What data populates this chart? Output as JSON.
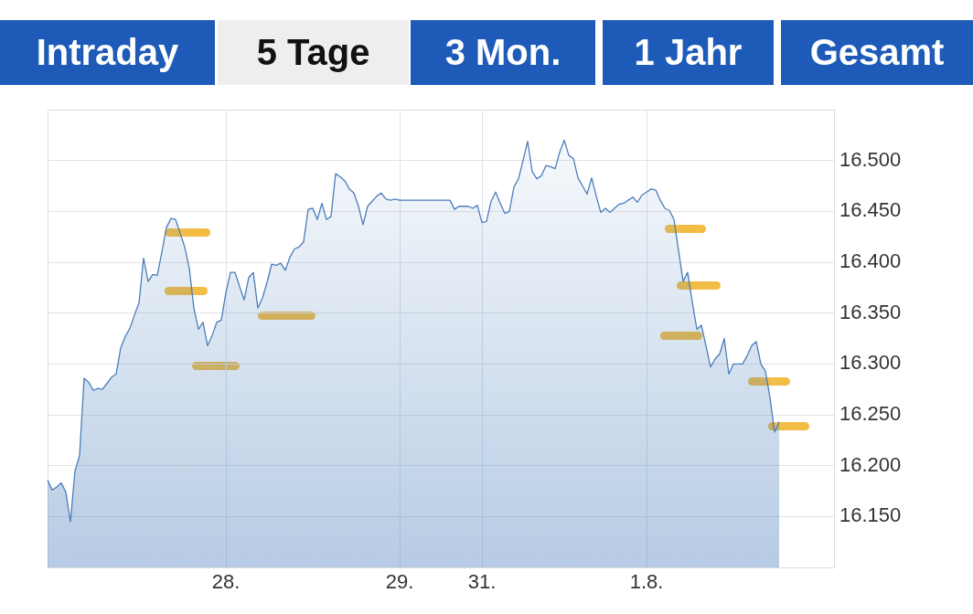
{
  "chart_data": {
    "type": "area",
    "annotations": [
      "Intraday",
      "5 Tage",
      "3 Mon.",
      "1 Jahr",
      "Gesamt"
    ],
    "categories": [
      null,
      null,
      null,
      null,
      null,
      null,
      null,
      null,
      null,
      null,
      null,
      null,
      null,
      null,
      null,
      null,
      null,
      null,
      null,
      null,
      null,
      null,
      null,
      null,
      null,
      null,
      null,
      null,
      null,
      null,
      null,
      null,
      null,
      null,
      null,
      null,
      null,
      null,
      null,
      "28.",
      null,
      null,
      null,
      null,
      null,
      null,
      null,
      null,
      null,
      null,
      null,
      null,
      null,
      null,
      null,
      null,
      null,
      null,
      null,
      null,
      null,
      null,
      null,
      null,
      null,
      null,
      null,
      null,
      null,
      null,
      null,
      null,
      null,
      null,
      null,
      null,
      null,
      "29.",
      null,
      null,
      null,
      null,
      null,
      null,
      null,
      null,
      null,
      null,
      null,
      null,
      null,
      null,
      null,
      null,
      null,
      "31.",
      null,
      null,
      null,
      null,
      null,
      null,
      null,
      null,
      null,
      null,
      null,
      null,
      null,
      null,
      null,
      null,
      null,
      null,
      null,
      null,
      null,
      null,
      null,
      null,
      null,
      null,
      null,
      null,
      null,
      null,
      null,
      null,
      null,
      null,
      null,
      "1.8.",
      null,
      null,
      null,
      null,
      null,
      null,
      null,
      null,
      null,
      null,
      null,
      null,
      null,
      null,
      null,
      null,
      null,
      null,
      null,
      null,
      null,
      null,
      null,
      null,
      null,
      null,
      null,
      null,
      null,
      null,
      null,
      null,
      null,
      null,
      null,
      null,
      null,
      null,
      null,
      null,
      null
    ],
    "series": [
      {
        "color": "#4a7ebb",
        "values": [
          16.186,
          16.176,
          16.179,
          16.183,
          16.174,
          16.145,
          16.195,
          16.21,
          16.286,
          16.282,
          16.274,
          16.276,
          16.275,
          16.281,
          16.287,
          16.29,
          16.316,
          16.327,
          16.335,
          16.348,
          16.36,
          16.404,
          16.381,
          16.388,
          16.387,
          16.41,
          16.434,
          16.443,
          16.442,
          null,
          16.415,
          16.394,
          16.355,
          16.334,
          16.341,
          16.318,
          16.328,
          16.341,
          16.343,
          16.37,
          16.39,
          16.39,
          16.376,
          16.363,
          16.385,
          16.39,
          16.355,
          16.365,
          16.38,
          16.398,
          16.397,
          16.399,
          16.392,
          16.405,
          16.413,
          16.415,
          16.42,
          16.452,
          16.453,
          16.442,
          16.458,
          16.442,
          16.445,
          16.487,
          16.484,
          16.48,
          16.472,
          16.468,
          16.455,
          16.437,
          16.455,
          16.46,
          16.465,
          16.468,
          16.462,
          16.461,
          16.462,
          16.461,
          16.461,
          16.461,
          16.461,
          16.461,
          16.461,
          16.461,
          16.461,
          16.461,
          16.461,
          16.461,
          16.461,
          16.452,
          16.455,
          16.455,
          16.455,
          16.453,
          16.456,
          16.439,
          16.44,
          16.46,
          16.469,
          16.458,
          16.448,
          16.45,
          16.474,
          16.482,
          16.5,
          16.519,
          16.489,
          16.482,
          16.485,
          16.495,
          16.494,
          16.492,
          16.508,
          16.52,
          16.505,
          16.502,
          16.483,
          16.475,
          16.467,
          16.483,
          16.465,
          16.449,
          16.453,
          16.449,
          16.453,
          16.457,
          16.458,
          16.461,
          16.464,
          16.459,
          16.466,
          16.469,
          16.472,
          16.471,
          16.461,
          16.453,
          16.451,
          16.442,
          null,
          16.381,
          16.39,
          16.361,
          16.334,
          16.338,
          16.318,
          16.297,
          16.305,
          16.31,
          16.325,
          16.29,
          16.3,
          16.3,
          16.3,
          16.308,
          16.318,
          16.322,
          16.3,
          16.293,
          16.267,
          16.233,
          16.243,
          null,
          null,
          null,
          null,
          null,
          null,
          null,
          null,
          null,
          null,
          null,
          null
        ]
      }
    ],
    "ylim": [
      16.1,
      16.55
    ],
    "yticks": [
      {
        "value": 16.15,
        "label": "16.150"
      },
      {
        "value": 16.2,
        "label": "16.200"
      },
      {
        "value": 16.25,
        "label": "16.250"
      },
      {
        "value": 16.3,
        "label": "16.300"
      },
      {
        "value": 16.35,
        "label": "16.350"
      },
      {
        "value": 16.4,
        "label": "16.400"
      },
      {
        "value": 16.45,
        "label": "16.450"
      },
      {
        "value": 16.5,
        "label": "16.500"
      }
    ],
    "grid": true,
    "legend": false,
    "marker": "none",
    "line_style": "solid"
  }
}
